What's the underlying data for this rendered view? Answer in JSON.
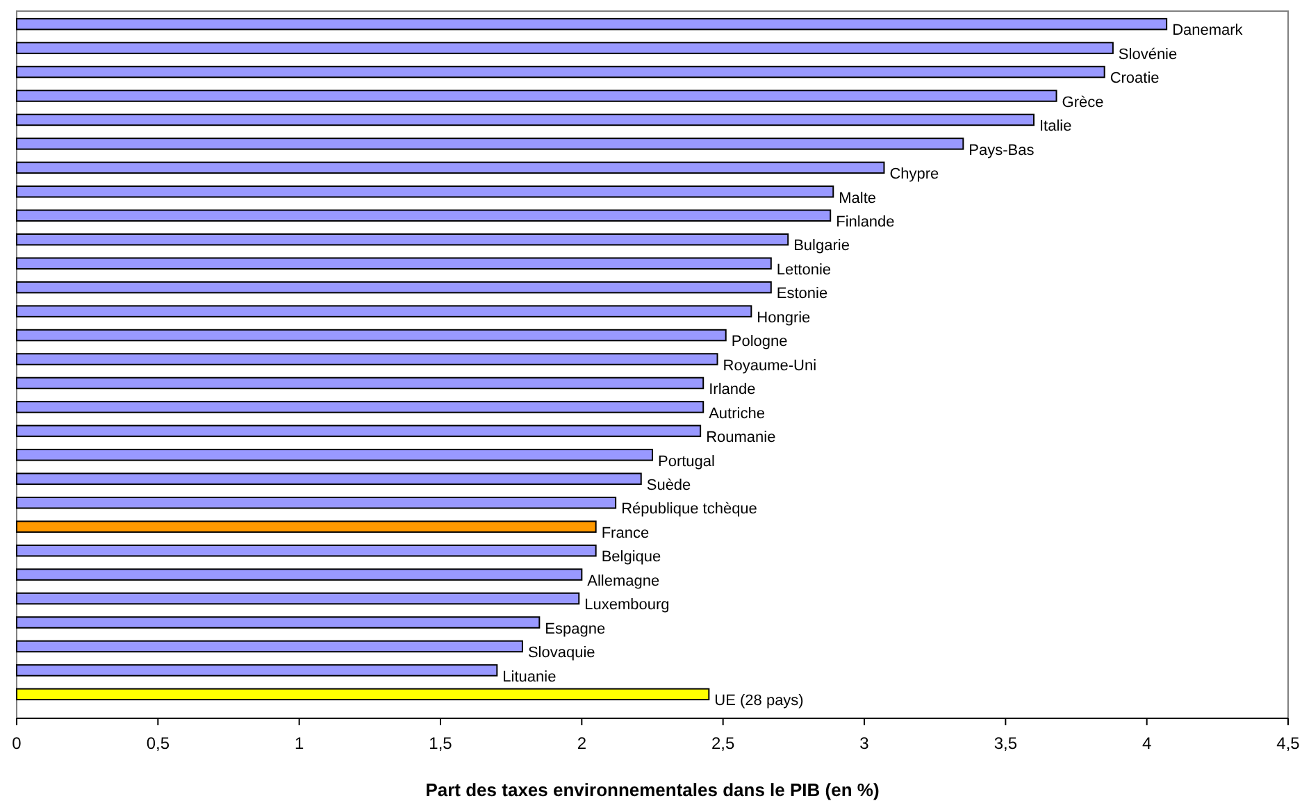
{
  "chart_data": {
    "type": "bar",
    "orientation": "horizontal",
    "xlabel": "Part des taxes environnementales dans le PIB (en %)",
    "categories": [
      "Danemark",
      "Slovénie",
      "Croatie",
      "Grèce",
      "Italie",
      "Pays-Bas",
      "Chypre",
      "Malte",
      "Finlande",
      "Bulgarie",
      "Lettonie",
      "Estonie",
      "Hongrie",
      "Pologne",
      "Royaume-Uni",
      "Irlande",
      "Autriche",
      "Roumanie",
      "Portugal",
      "Suède",
      "République tchèque",
      "France",
      "Belgique",
      "Allemagne",
      "Luxembourg",
      "Espagne",
      "Slovaquie",
      "Lituanie",
      "UE (28 pays)"
    ],
    "values": [
      4.07,
      3.88,
      3.85,
      3.68,
      3.6,
      3.35,
      3.07,
      2.89,
      2.88,
      2.73,
      2.67,
      2.67,
      2.6,
      2.51,
      2.48,
      2.43,
      2.43,
      2.42,
      2.25,
      2.21,
      2.12,
      2.05,
      2.05,
      2.0,
      1.99,
      1.85,
      1.79,
      1.7,
      2.45
    ],
    "colors": [
      "#9999ff",
      "#9999ff",
      "#9999ff",
      "#9999ff",
      "#9999ff",
      "#9999ff",
      "#9999ff",
      "#9999ff",
      "#9999ff",
      "#9999ff",
      "#9999ff",
      "#9999ff",
      "#9999ff",
      "#9999ff",
      "#9999ff",
      "#9999ff",
      "#9999ff",
      "#9999ff",
      "#9999ff",
      "#9999ff",
      "#9999ff",
      "#ff9900",
      "#9999ff",
      "#9999ff",
      "#9999ff",
      "#9999ff",
      "#9999ff",
      "#9999ff",
      "#ffff00"
    ],
    "xlim": [
      0,
      4.5
    ],
    "xticks": [
      0,
      {
        "value": 0.5,
        "label": "0,5"
      },
      1,
      {
        "value": 1.5,
        "label": "1,5"
      },
      2,
      {
        "value": 2.5,
        "label": "2,5"
      },
      3,
      {
        "value": 3.5,
        "label": "3,5"
      },
      4,
      {
        "value": 4.5,
        "label": "4,5"
      }
    ],
    "grid": false
  }
}
